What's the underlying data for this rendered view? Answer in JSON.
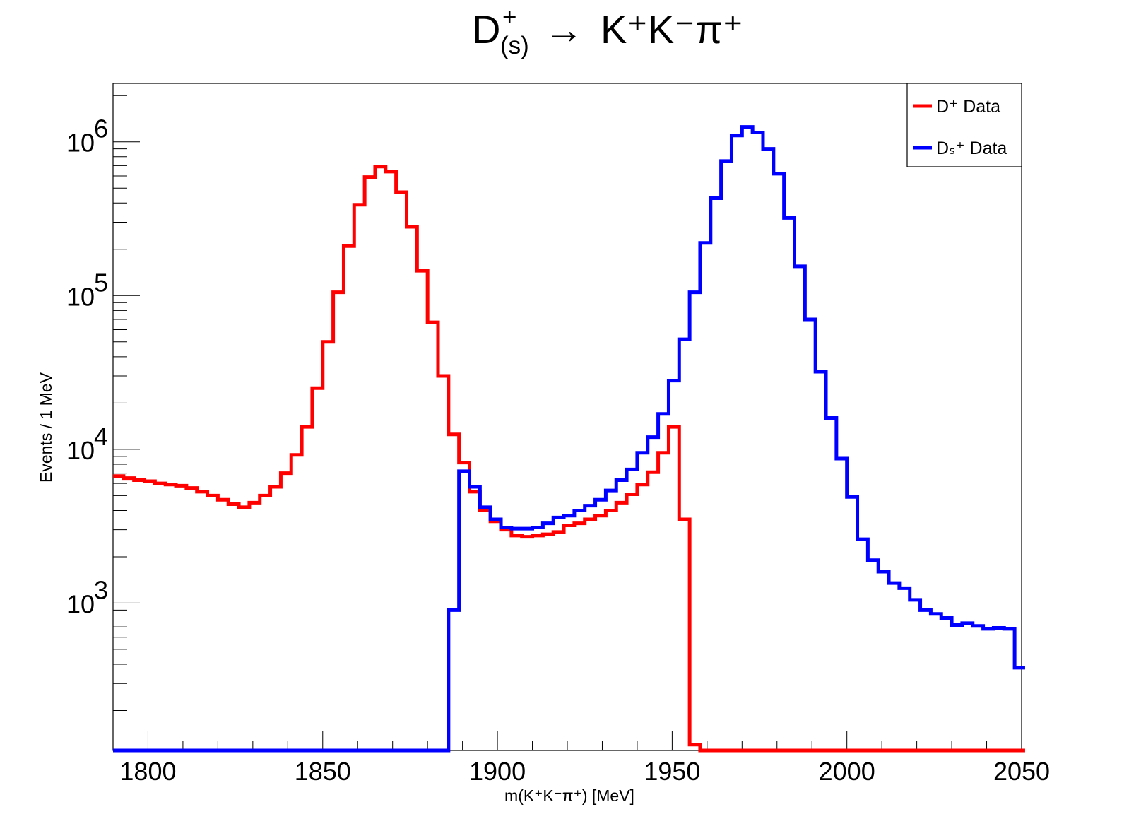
{
  "chart_data": {
    "type": "line",
    "title": {
      "main": "D",
      "sup": "+",
      "sub": "(s)",
      "arrow": "→",
      "rest": "K⁺K⁻π⁺"
    },
    "xlabel": "m(K⁺K⁻π⁺) [MeV]",
    "ylabel": "Events / 1 MeV",
    "xlim": [
      1790,
      2050
    ],
    "ylim": [
      110,
      2400000
    ],
    "y_scale": "log",
    "grid": false,
    "legend_position": "top-right",
    "x_ticks": [
      "1800",
      "1850",
      "1900",
      "1950",
      "2000",
      "2050"
    ],
    "y_ticks": [
      {
        "base": "10",
        "exp": "3"
      },
      {
        "base": "10",
        "exp": "4"
      },
      {
        "base": "10",
        "exp": "5"
      },
      {
        "base": "10",
        "exp": "6"
      }
    ],
    "bin_width": 3,
    "x_start": 1790,
    "series": [
      {
        "name": "D⁺  Data",
        "color": "#ff0000",
        "values": [
          6700,
          6500,
          6300,
          6200,
          6000,
          5900,
          5800,
          5600,
          5300,
          5000,
          4700,
          4400,
          4200,
          4500,
          5000,
          5700,
          7000,
          9200,
          14000,
          25000,
          50000,
          105000,
          210000,
          390000,
          590000,
          690000,
          640000,
          470000,
          280000,
          145000,
          67000,
          30000,
          12500,
          8200,
          5300,
          4000,
          3400,
          3000,
          2750,
          2700,
          2750,
          2800,
          2900,
          3200,
          3300,
          3500,
          3700,
          4000,
          4500,
          5100,
          5900,
          7100,
          9500,
          14000,
          3500,
          120,
          110,
          110,
          110,
          110,
          110,
          110,
          110,
          110,
          110,
          110,
          110,
          110,
          110,
          110,
          110,
          110,
          110,
          110,
          110,
          110,
          110,
          110,
          110,
          110,
          110,
          110,
          110,
          110,
          110,
          110,
          110
        ]
      },
      {
        "name": "Dₛ⁺  Data",
        "color": "#0000ff",
        "values": [
          110,
          110,
          110,
          110,
          110,
          110,
          110,
          110,
          110,
          110,
          110,
          110,
          110,
          110,
          110,
          110,
          110,
          110,
          110,
          110,
          110,
          110,
          110,
          110,
          110,
          110,
          110,
          110,
          110,
          110,
          110,
          110,
          900,
          7200,
          5700,
          4200,
          3500,
          3100,
          3050,
          3050,
          3100,
          3300,
          3600,
          3700,
          4000,
          4300,
          4700,
          5400,
          6300,
          7400,
          9500,
          12000,
          17000,
          28000,
          52000,
          105000,
          220000,
          430000,
          750000,
          1100000,
          1250000,
          1150000,
          900000,
          620000,
          320000,
          155000,
          70000,
          32000,
          16000,
          8700,
          4900,
          2600,
          1900,
          1600,
          1350,
          1250,
          1050,
          900,
          850,
          800,
          720,
          740,
          710,
          680,
          690,
          680,
          380
        ]
      }
    ]
  }
}
